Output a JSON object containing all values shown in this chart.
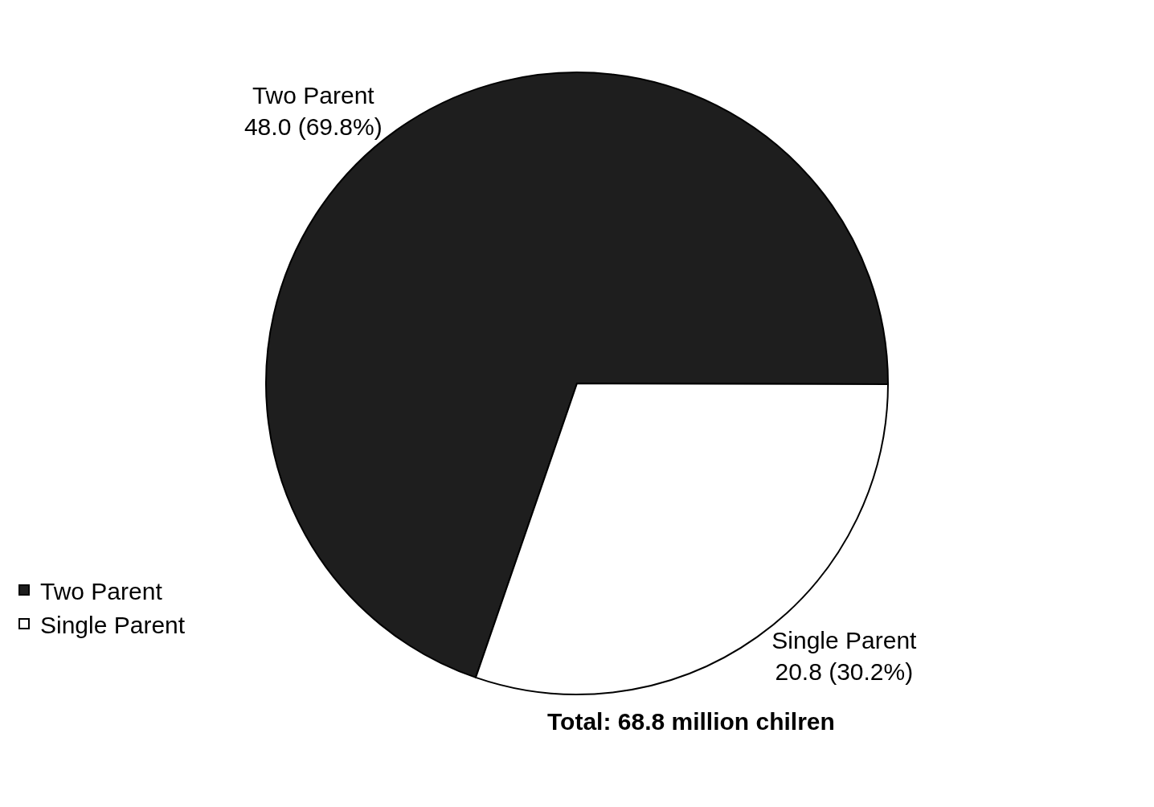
{
  "chart_data": {
    "type": "pie",
    "categories": [
      "Two Parent",
      "Single Parent"
    ],
    "values": [
      48.0,
      20.8
    ],
    "colors": [
      "#1e1e1e",
      "#ffffff"
    ],
    "value_labels": [
      "48.0 (69.8%)",
      "20.8 (30.2%)"
    ],
    "annotations": [
      "Total: 68.8 million chilren"
    ],
    "legend": "bottom left"
  }
}
